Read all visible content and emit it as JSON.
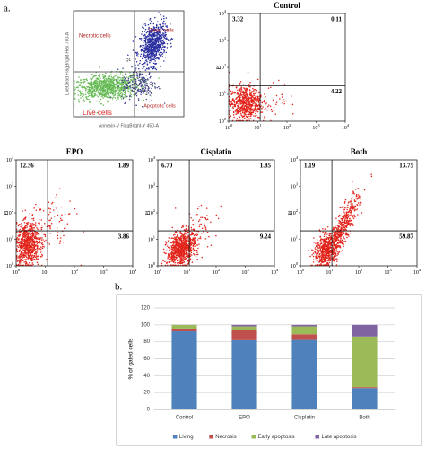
{
  "panel_labels": [
    "a.",
    "b."
  ],
  "gating_plot": {
    "labels": [
      "Necrotic cells",
      "Dead cells",
      "Apoptotic cells",
      "Live cells"
    ],
    "x_label": "Annexin-V FlagBright-Y 450-A",
    "y_label": "LiveDead FlagBright Hex 780-A",
    "gate_label": "Q1"
  },
  "flow_axis": {
    "log": true,
    "xlim": [
      1,
      10000
    ],
    "ylim": [
      1,
      10000
    ],
    "ylabel": "PI",
    "xticks": [
      {
        "value": 1,
        "label": "10",
        "sup": "0"
      },
      {
        "value": 10,
        "label": "10",
        "sup": "1"
      },
      {
        "value": 100,
        "label": "10",
        "sup": "2"
      },
      {
        "value": 1000,
        "label": "10",
        "sup": "3"
      },
      {
        "value": 10000,
        "label": "10",
        "sup": "4"
      }
    ],
    "yticks": [
      {
        "value": 1,
        "label": "10",
        "sup": "0"
      },
      {
        "value": 10,
        "label": "10",
        "sup": "1"
      },
      {
        "value": 100,
        "label": "10",
        "sup": "2"
      },
      {
        "value": 1000,
        "label": "10",
        "sup": "3"
      },
      {
        "value": 10000,
        "label": "10",
        "sup": "4"
      }
    ]
  },
  "flow_plots": [
    {
      "title": "Control",
      "values": [
        3.32,
        0.11,
        4.22
      ]
    },
    {
      "title": "EPO",
      "values": [
        12.36,
        1.89,
        3.86
      ]
    },
    {
      "title": "Cisplatin",
      "values": [
        6.7,
        1.85,
        9.24
      ],
      "value_labels": [
        "6.70",
        "1.85",
        "9.24"
      ]
    },
    {
      "title": "Both",
      "values": [
        1.19,
        13.75,
        59.87
      ]
    }
  ],
  "chart_data": {
    "type": "bar",
    "stacked": true,
    "ylabel": "% of gated cells",
    "categories": [
      "Control",
      "EPO",
      "Cisplatin",
      "Both"
    ],
    "series": [
      {
        "name": "Living",
        "color": "#4f81bd",
        "values": [
          92.35,
          81.89,
          82.21,
          25.19
        ]
      },
      {
        "name": "Necrosis",
        "color": "#c0504d",
        "values": [
          3.32,
          12.36,
          6.7,
          1.19
        ]
      },
      {
        "name": "Early apoptosis",
        "color": "#9bbb59",
        "values": [
          4.22,
          3.86,
          9.24,
          59.87
        ]
      },
      {
        "name": "Late apoptosis",
        "color": "#8064a2",
        "values": [
          0.11,
          1.89,
          1.85,
          13.75
        ]
      }
    ],
    "ylim": [
      0,
      120
    ],
    "yticks": [
      0,
      20,
      40,
      60,
      80,
      100,
      120
    ],
    "grid": true,
    "legend": "bottom"
  }
}
